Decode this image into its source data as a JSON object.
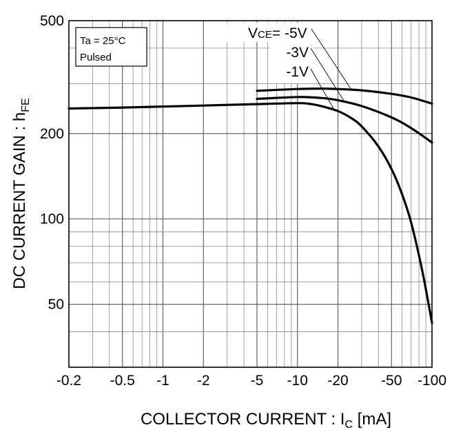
{
  "chart_data": {
    "type": "line",
    "xscale": "log",
    "yscale": "log",
    "xlim": [
      -0.2,
      -100
    ],
    "ylim": [
      30,
      500
    ],
    "xlabel_main": "COLLECTOR CURRENT : I",
    "xlabel_sub": "C",
    "xlabel_unit": " [mA]",
    "ylabel_main": "DC CURRENT GAIN : h",
    "ylabel_sub": "FE",
    "x_ticks": [
      {
        "value": 0.2,
        "label": "-0.2"
      },
      {
        "value": 0.5,
        "label": "-0.5"
      },
      {
        "value": 1,
        "label": "-1"
      },
      {
        "value": 2,
        "label": "-2"
      },
      {
        "value": 5,
        "label": "-5"
      },
      {
        "value": 10,
        "label": "-10"
      },
      {
        "value": 20,
        "label": "-20"
      },
      {
        "value": 50,
        "label": "-50"
      },
      {
        "value": 100,
        "label": "-100"
      }
    ],
    "y_ticks": [
      {
        "value": 50,
        "label": "50"
      },
      {
        "value": 100,
        "label": "100"
      },
      {
        "value": 200,
        "label": "200"
      },
      {
        "value": 500,
        "label": "500"
      }
    ],
    "grid": true,
    "conditions": {
      "line1": "Ta = 25°C",
      "line2": "Pulsed"
    },
    "legend": {
      "prefix": "V",
      "sub": "CE",
      "first_value": "= -5V"
    },
    "series": [
      {
        "name": "-5V",
        "x": [
          5,
          10,
          15,
          20,
          30,
          50,
          70,
          100
        ],
        "y": [
          283,
          287,
          288,
          287,
          284,
          276,
          268,
          255
        ]
      },
      {
        "name": "-3V",
        "x": [
          5,
          10,
          15,
          20,
          30,
          50,
          70,
          100
        ],
        "y": [
          265,
          269,
          267,
          262,
          250,
          228,
          209,
          186
        ]
      },
      {
        "name": "-1V",
        "x": [
          0.2,
          0.5,
          1,
          2,
          5,
          10,
          12,
          15,
          20,
          25,
          30,
          40,
          50,
          60,
          70,
          85,
          100
        ],
        "y": [
          245,
          247,
          249,
          251,
          254,
          256,
          255,
          250,
          240,
          227,
          212,
          180,
          150,
          122,
          97,
          65,
          43
        ]
      }
    ]
  }
}
